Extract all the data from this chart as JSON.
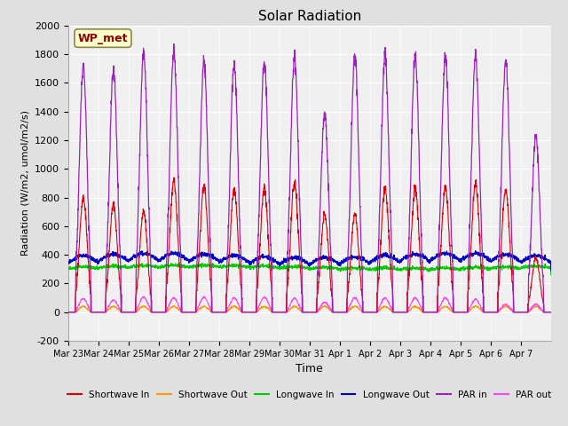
{
  "title": "Solar Radiation",
  "ylabel": "Radiation (W/m2, umol/m2/s)",
  "xlabel": "Time",
  "ylim": [
    -200,
    2000
  ],
  "yticks": [
    -200,
    0,
    200,
    400,
    600,
    800,
    1000,
    1200,
    1400,
    1600,
    1800,
    2000
  ],
  "fig_bg_color": "#e0e0e0",
  "plot_bg_color": "#f0f0f0",
  "grid_color": "#ffffff",
  "legend_entries": [
    {
      "label": "Shortwave In",
      "color": "#dd0000"
    },
    {
      "label": "Shortwave Out",
      "color": "#ff9900"
    },
    {
      "label": "Longwave In",
      "color": "#00cc00"
    },
    {
      "label": "Longwave Out",
      "color": "#0000cc"
    },
    {
      "label": "PAR in",
      "color": "#9922bb"
    },
    {
      "label": "PAR out",
      "color": "#ff44ff"
    }
  ],
  "annotation_text": "WP_met",
  "n_days": 16,
  "day_labels": [
    "Mar 23",
    "Mar 24",
    "Mar 25",
    "Mar 26",
    "Mar 27",
    "Mar 28",
    "Mar 29",
    "Mar 30",
    "Mar 31",
    "Apr 1",
    "Apr 2",
    "Apr 3",
    "Apr 4",
    "Apr 5",
    "Apr 6",
    "Apr 7"
  ],
  "shortwave_in_peaks": [
    800,
    750,
    700,
    920,
    880,
    860,
    860,
    900,
    680,
    680,
    860,
    860,
    870,
    900,
    860,
    380
  ],
  "par_in_peaks": [
    1720,
    1680,
    1810,
    1820,
    1750,
    1725,
    1750,
    1790,
    1380,
    1790,
    1790,
    1790,
    1790,
    1790,
    1770,
    1230
  ],
  "par_out_peaks": [
    95,
    85,
    105,
    100,
    105,
    100,
    105,
    95,
    70,
    100,
    100,
    100,
    100,
    90,
    55,
    55
  ],
  "longwave_in_base": 305,
  "longwave_out_base": 345,
  "shortwave_out_peak": 40
}
